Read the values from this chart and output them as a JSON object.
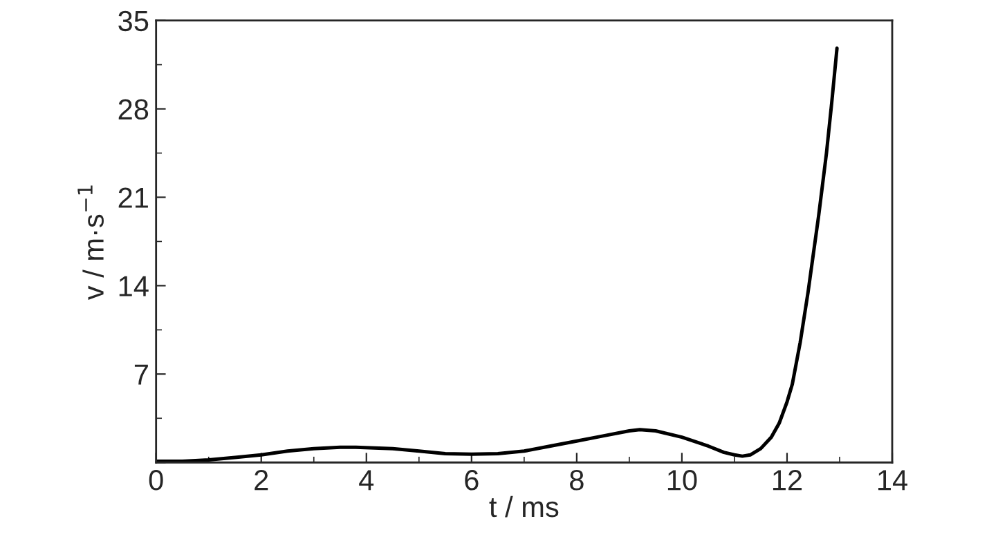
{
  "chart_data": {
    "type": "line",
    "xlabel": "t / ms",
    "ylabel": "v / m·s$^{−1}$",
    "x": [
      0,
      0.5,
      1,
      1.5,
      2,
      2.5,
      3,
      3.5,
      3.8,
      4.5,
      5,
      5.5,
      6,
      6.5,
      7,
      7.5,
      8,
      8.5,
      9,
      9.2,
      9.5,
      10,
      10.5,
      10.8,
      11,
      11.15,
      11.3,
      11.5,
      11.7,
      11.85,
      12,
      12.1,
      12.25,
      12.4,
      12.5,
      12.6,
      12.75,
      12.85,
      12.95
    ],
    "series": [
      {
        "color": "#000000",
        "values": [
          0.1,
          0.1,
          0.2,
          0.4,
          0.6,
          0.9,
          1.1,
          1.2,
          1.2,
          1.1,
          0.9,
          0.7,
          0.65,
          0.7,
          0.9,
          1.3,
          1.7,
          2.1,
          2.5,
          2.6,
          2.5,
          2.0,
          1.3,
          0.8,
          0.6,
          0.5,
          0.6,
          1.1,
          2.0,
          3.1,
          4.8,
          6.2,
          9.5,
          13.5,
          16.5,
          19.5,
          24.5,
          28.5,
          32.8
        ]
      }
    ],
    "xlim": [
      0,
      14
    ],
    "xticks": [
      0,
      2,
      4,
      6,
      8,
      10,
      12,
      14
    ],
    "ylim": [
      0,
      35
    ],
    "yticks": [
      {
        "value": 0,
        "label": null
      },
      7,
      14,
      21,
      28,
      35
    ],
    "grid": false,
    "legend": false,
    "marker": "none",
    "line_style": "solid"
  }
}
